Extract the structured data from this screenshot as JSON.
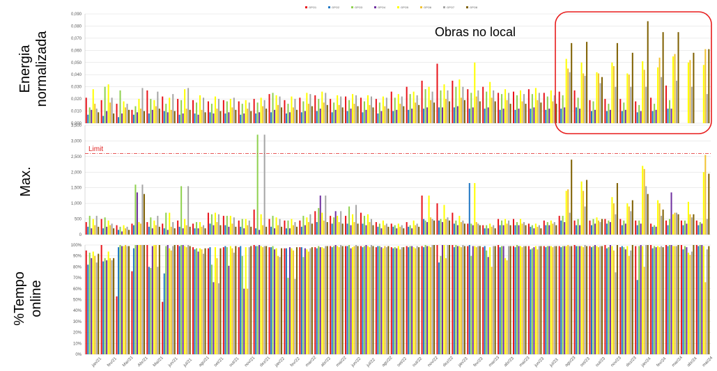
{
  "labels": {
    "panel1": "Energia\nnormalizada",
    "panel2": "Max.",
    "panel3": "%Tempo\nonline"
  },
  "annotation": "Obras no local",
  "limit_label": "Limit",
  "colors": [
    "#e8141b",
    "#1f77c4",
    "#8fd14f",
    "#7030a0",
    "#ffff00",
    "#f2c232",
    "#a5a5a5",
    "#7f6000"
  ],
  "chart_data": [
    {
      "type": "bar",
      "title": "",
      "series_names": [
        "GPO1",
        "GPO2",
        "GPO3",
        "GPO4",
        "GPO5",
        "GPO6",
        "GPO7",
        "GPO8"
      ],
      "x_tick_labels": [
        "jan/21",
        "fev/21",
        "Mar/21",
        "Abr/21",
        "Mai/21",
        "jun/21",
        "jul/21",
        "ago/21",
        "set/21",
        "out/21",
        "nov/21",
        "dez/21",
        "jan/22",
        "fev/22",
        "mar/22",
        "abr/22",
        "mai/22",
        "jun/22",
        "jul/22",
        "ago/22",
        "set/22",
        "out/22",
        "nov/22",
        "dez/22",
        "jan/23",
        "fev/23",
        "mar/23",
        "abr/23",
        "mai/23",
        "jun/23",
        "jul/23",
        "ago/23",
        "set/23",
        "out/23",
        "nov/23",
        "dez/23",
        "jan/24",
        "fev/24",
        "mar/24",
        "abr/24",
        "mai/24"
      ],
      "y_ticks": [
        "0,000",
        "0,010",
        "0,020",
        "0,030",
        "0,040",
        "0,050",
        "0,060",
        "0,070",
        "0,080",
        "0,090"
      ],
      "ylim": [
        0,
        0.09
      ],
      "legend": "top-center",
      "grid": true,
      "approx_values": [
        [
          0.021,
          0.007,
          0.013,
          0.011,
          0.028,
          0.016,
          0.012,
          0.009
        ],
        [
          0.019,
          0.006,
          0.03,
          0.01,
          0.032,
          0.017,
          0.021,
          0.008
        ],
        [
          0.016,
          0.005,
          0.027,
          0.008,
          0.018,
          0.013,
          0.016,
          0.011
        ],
        [
          0.011,
          0.007,
          0.014,
          0.009,
          0.02,
          0.012,
          0.029,
          0.01
        ],
        [
          0.027,
          0.008,
          0.02,
          0.011,
          0.019,
          0.014,
          0.026,
          0.012
        ],
        [
          0.022,
          0.01,
          0.016,
          0.009,
          0.021,
          0.011,
          0.024,
          0.01
        ],
        [
          0.02,
          0.007,
          0.019,
          0.008,
          0.028,
          0.012,
          0.029,
          0.011
        ],
        [
          0.019,
          0.008,
          0.017,
          0.007,
          0.023,
          0.011,
          0.021,
          0.009
        ],
        [
          0.018,
          0.009,
          0.016,
          0.008,
          0.022,
          0.012,
          0.02,
          0.01
        ],
        [
          0.019,
          0.008,
          0.018,
          0.009,
          0.02,
          0.013,
          0.021,
          0.011
        ],
        [
          0.018,
          0.007,
          0.016,
          0.008,
          0.019,
          0.012,
          0.017,
          0.01
        ],
        [
          0.02,
          0.008,
          0.017,
          0.009,
          0.021,
          0.014,
          0.019,
          0.012
        ],
        [
          0.024,
          0.009,
          0.025,
          0.011,
          0.023,
          0.015,
          0.022,
          0.013
        ],
        [
          0.019,
          0.008,
          0.016,
          0.009,
          0.022,
          0.013,
          0.02,
          0.011
        ],
        [
          0.021,
          0.009,
          0.018,
          0.01,
          0.025,
          0.016,
          0.024,
          0.014
        ],
        [
          0.023,
          0.01,
          0.02,
          0.012,
          0.026,
          0.017,
          0.025,
          0.015
        ],
        [
          0.02,
          0.009,
          0.017,
          0.011,
          0.023,
          0.015,
          0.022,
          0.013
        ],
        [
          0.022,
          0.01,
          0.019,
          0.012,
          0.024,
          0.016,
          0.023,
          0.014
        ],
        [
          0.021,
          0.009,
          0.018,
          0.011,
          0.023,
          0.015,
          0.022,
          0.013
        ],
        [
          0.02,
          0.008,
          0.017,
          0.01,
          0.022,
          0.014,
          0.021,
          0.012
        ],
        [
          0.026,
          0.01,
          0.021,
          0.011,
          0.024,
          0.016,
          0.022,
          0.014
        ],
        [
          0.03,
          0.011,
          0.024,
          0.012,
          0.026,
          0.017,
          0.023,
          0.015
        ],
        [
          0.035,
          0.012,
          0.028,
          0.013,
          0.03,
          0.019,
          0.026,
          0.017
        ],
        [
          0.049,
          0.013,
          0.027,
          0.013,
          0.032,
          0.02,
          0.027,
          0.018
        ],
        [
          0.035,
          0.013,
          0.03,
          0.014,
          0.036,
          0.021,
          0.03,
          0.019
        ],
        [
          0.028,
          0.012,
          0.025,
          0.013,
          0.05,
          0.022,
          0.027,
          0.018
        ],
        [
          0.03,
          0.012,
          0.026,
          0.013,
          0.034,
          0.021,
          0.027,
          0.018
        ],
        [
          0.025,
          0.011,
          0.024,
          0.012,
          0.028,
          0.019,
          0.025,
          0.016
        ],
        [
          0.026,
          0.011,
          0.023,
          0.012,
          0.027,
          0.018,
          0.024,
          0.016
        ],
        [
          0.028,
          0.012,
          0.024,
          0.013,
          0.029,
          0.019,
          0.025,
          0.017
        ],
        [
          0.025,
          0.011,
          0.022,
          0.012,
          0.027,
          0.018,
          0.023,
          0.016
        ],
        [
          0.026,
          0.012,
          0.023,
          0.013,
          0.053,
          0.045,
          0.042,
          0.066
        ],
        [
          0.027,
          0.013,
          0.021,
          0.012,
          0.05,
          0.041,
          0.039,
          0.067
        ],
        [
          0.019,
          0.01,
          0.018,
          0.011,
          0.042,
          0.041,
          0.033,
          0.038
        ],
        [
          0.02,
          0.01,
          0.016,
          0.011,
          0.05,
          0.047,
          0.03,
          0.066
        ],
        [
          0.02,
          0.01,
          0.017,
          0.011,
          0.041,
          0.04,
          0.03,
          0.058
        ],
        [
          0.018,
          0.009,
          0.015,
          0.01,
          0.051,
          0.044,
          0.03,
          0.084
        ],
        [
          0.021,
          0.01,
          0.016,
          0.011,
          0.046,
          0.054,
          0.038,
          0.075
        ],
        [
          0.031,
          0.012,
          0.019,
          0.012,
          0.055,
          0.057,
          0.035,
          0.075
        ],
        [
          0.0,
          0.0,
          0.0,
          0.0,
          0.05,
          0.052,
          0.03,
          0.058
        ],
        [
          0.0,
          0.0,
          0.0,
          0.0,
          0.048,
          0.061,
          0.024,
          0.061
        ]
      ]
    },
    {
      "type": "bar",
      "title": "",
      "y_ticks": [
        "0",
        "500",
        "1,000",
        "1,500",
        "2,000",
        "2,500",
        "3,000",
        "3,500"
      ],
      "ylim": [
        0,
        3500
      ],
      "limit_value": 2600,
      "grid": true,
      "approx_values": [
        [
          400,
          250,
          600,
          200,
          500,
          300,
          600,
          250
        ],
        [
          500,
          200,
          550,
          250,
          450,
          300,
          350,
          200
        ],
        [
          300,
          150,
          250,
          100,
          300,
          200,
          250,
          150
        ],
        [
          350,
          300,
          1600,
          1350,
          400,
          350,
          1600,
          1300
        ],
        [
          400,
          250,
          550,
          200,
          450,
          300,
          600,
          250
        ],
        [
          350,
          200,
          700,
          150,
          700,
          250,
          400,
          200
        ],
        [
          450,
          250,
          1550,
          200,
          500,
          300,
          1550,
          250
        ],
        [
          350,
          200,
          400,
          200,
          400,
          250,
          300,
          200
        ],
        [
          700,
          350,
          650,
          300,
          700,
          400,
          650,
          300
        ],
        [
          600,
          300,
          600,
          250,
          600,
          350,
          550,
          250
        ],
        [
          450,
          250,
          500,
          200,
          500,
          300,
          450,
          250
        ],
        [
          800,
          200,
          3200,
          150,
          650,
          300,
          3200,
          250
        ],
        [
          500,
          250,
          600,
          200,
          550,
          300,
          500,
          250
        ],
        [
          450,
          200,
          450,
          200,
          500,
          300,
          400,
          250
        ],
        [
          450,
          250,
          600,
          300,
          550,
          400,
          650,
          350
        ],
        [
          750,
          400,
          850,
          1250,
          700,
          450,
          1250,
          400
        ],
        [
          600,
          350,
          550,
          750,
          600,
          400,
          750,
          350
        ],
        [
          600,
          350,
          900,
          300,
          650,
          400,
          950,
          350
        ],
        [
          700,
          350,
          600,
          300,
          650,
          400,
          500,
          300
        ],
        [
          400,
          250,
          350,
          200,
          450,
          300,
          350,
          250
        ],
        [
          350,
          250,
          300,
          200,
          350,
          250,
          300,
          200
        ],
        [
          400,
          250,
          300,
          200,
          450,
          300,
          350,
          250
        ],
        [
          1250,
          500,
          450,
          400,
          1250,
          550,
          500,
          450
        ],
        [
          1000,
          450,
          500,
          400,
          950,
          500,
          550,
          450
        ],
        [
          700,
          350,
          450,
          300,
          600,
          400,
          450,
          350
        ],
        [
          350,
          1650,
          350,
          300,
          1650,
          400,
          350,
          300
        ],
        [
          300,
          200,
          300,
          200,
          350,
          250,
          300,
          200
        ],
        [
          500,
          300,
          450,
          300,
          500,
          350,
          450,
          300
        ],
        [
          500,
          300,
          400,
          300,
          500,
          350,
          400,
          300
        ],
        [
          350,
          250,
          300,
          200,
          350,
          250,
          300,
          200
        ],
        [
          450,
          300,
          400,
          300,
          450,
          350,
          400,
          300
        ],
        [
          600,
          450,
          600,
          400,
          1400,
          1450,
          700,
          2400
        ],
        [
          450,
          300,
          500,
          300,
          1700,
          1400,
          900,
          1750
        ],
        [
          450,
          300,
          500,
          350,
          550,
          450,
          400,
          500
        ],
        [
          500,
          350,
          450,
          400,
          1200,
          1000,
          650,
          1650
        ],
        [
          500,
          300,
          450,
          350,
          1000,
          900,
          750,
          1100
        ],
        [
          450,
          300,
          450,
          350,
          2200,
          2100,
          1550,
          1300
        ],
        [
          350,
          250,
          300,
          250,
          1100,
          1000,
          600,
          800
        ],
        [
          450,
          300,
          500,
          1350,
          650,
          700,
          700,
          650
        ],
        [
          450,
          300,
          450,
          350,
          1050,
          650,
          550,
          650
        ],
        [
          450,
          300,
          400,
          350,
          2000,
          2550,
          500,
          1950
        ]
      ]
    },
    {
      "type": "bar",
      "title": "",
      "y_ticks": [
        "0%",
        "10%",
        "20%",
        "30%",
        "40%",
        "50%",
        "60%",
        "70%",
        "80%",
        "90%",
        "100%"
      ],
      "ylim": [
        0,
        100
      ],
      "grid": true,
      "approx_values": [
        [
          95,
          82,
          93,
          88,
          94,
          90,
          84,
          92
        ],
        [
          100,
          85,
          88,
          86,
          94,
          88,
          86,
          88
        ],
        [
          53,
          98,
          100,
          99,
          99,
          100,
          99,
          99
        ],
        [
          76,
          97,
          100,
          100,
          100,
          100,
          100,
          100
        ],
        [
          100,
          80,
          79,
          99,
          100,
          100,
          80,
          100
        ],
        [
          48,
          74,
          99,
          100,
          97,
          95,
          99,
          100
        ],
        [
          100,
          99,
          100,
          100,
          99,
          98,
          100,
          99
        ],
        [
          98,
          96,
          97,
          94,
          97,
          96,
          92,
          97
        ],
        [
          97,
          98,
          82,
          66,
          98,
          88,
          65,
          97
        ],
        [
          98,
          99,
          98,
          81,
          99,
          97,
          93,
          99
        ],
        [
          98,
          99,
          90,
          60,
          98,
          60,
          98,
          99
        ],
        [
          100,
          99,
          99,
          100,
          99,
          98,
          99,
          99
        ],
        [
          98,
          98,
          99,
          96,
          97,
          90,
          89,
          97
        ],
        [
          97,
          97,
          70,
          98,
          97,
          95,
          69,
          98
        ],
        [
          98,
          98,
          89,
          97,
          96,
          94,
          97,
          98
        ],
        [
          98,
          97,
          99,
          98,
          98,
          97,
          99,
          99
        ],
        [
          99,
          98,
          99,
          100,
          99,
          98,
          100,
          99
        ],
        [
          99,
          99,
          100,
          97,
          98,
          99,
          100,
          99
        ],
        [
          99,
          98,
          99,
          100,
          99,
          98,
          100,
          99
        ],
        [
          98,
          99,
          99,
          98,
          97,
          99,
          98,
          99
        ],
        [
          98,
          97,
          98,
          97,
          99,
          96,
          98,
          98
        ],
        [
          99,
          98,
          99,
          99,
          98,
          97,
          99,
          98
        ],
        [
          99,
          98,
          100,
          99,
          99,
          98,
          100,
          100
        ],
        [
          100,
          84,
          90,
          100,
          100,
          88,
          100,
          100
        ],
        [
          100,
          98,
          100,
          99,
          99,
          98,
          100,
          99
        ],
        [
          99,
          100,
          90,
          99,
          99,
          98,
          99,
          99
        ],
        [
          98,
          99,
          95,
          89,
          98,
          80,
          99,
          99
        ],
        [
          100,
          98,
          99,
          99,
          88,
          86,
          99,
          99
        ],
        [
          99,
          98,
          100,
          99,
          99,
          98,
          99,
          99
        ],
        [
          99,
          96,
          97,
          98,
          99,
          96,
          99,
          99
        ],
        [
          99,
          98,
          99,
          99,
          99,
          98,
          99,
          99
        ],
        [
          99,
          98,
          99,
          99,
          99,
          100,
          99,
          99
        ],
        [
          100,
          99,
          99,
          99,
          99,
          98,
          100,
          99
        ],
        [
          99,
          98,
          99,
          100,
          99,
          98,
          99,
          99
        ],
        [
          100,
          97,
          98,
          100,
          99,
          95,
          75,
          100
        ],
        [
          98,
          99,
          98,
          96,
          99,
          90,
          95,
          100
        ],
        [
          99,
          68,
          99,
          100,
          99,
          80,
          100,
          100
        ],
        [
          100,
          97,
          99,
          98,
          99,
          98,
          99,
          98
        ],
        [
          100,
          99,
          100,
          100,
          99,
          99,
          99,
          100
        ],
        [
          100,
          96,
          99,
          98,
          93,
          91,
          94,
          100
        ],
        [
          100,
          99,
          100,
          100,
          99,
          66,
          96,
          99
        ]
      ]
    }
  ]
}
